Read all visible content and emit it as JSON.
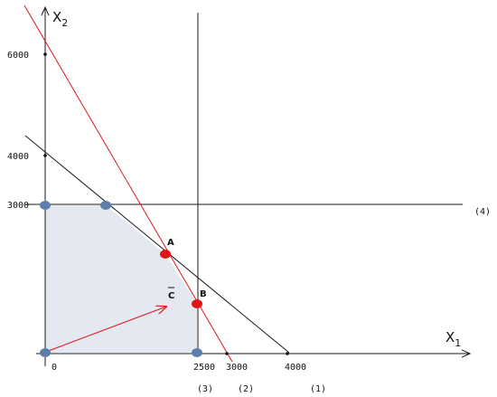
{
  "diagram": {
    "x_axis": {
      "name": "X",
      "subscript": "1"
    },
    "y_axis": {
      "name": "X",
      "subscript": "2"
    },
    "x_ticks": [
      "0",
      "2500",
      "3000",
      "4000"
    ],
    "y_ticks": [
      "6000",
      "4000",
      "3000"
    ],
    "constraint_labels": {
      "c1": "(1)",
      "c2": "(2)",
      "c3": "(3)",
      "c4": "(4)"
    },
    "points": {
      "A": "A",
      "B": "B"
    },
    "vector_label": "C",
    "colors": {
      "feasible_region": "#e3e8f1",
      "objective_line": "#e01515",
      "vertex_blue": "#5b7fa8",
      "vertex_red": "#e01515",
      "line_black": "#1a1a1a"
    }
  }
}
